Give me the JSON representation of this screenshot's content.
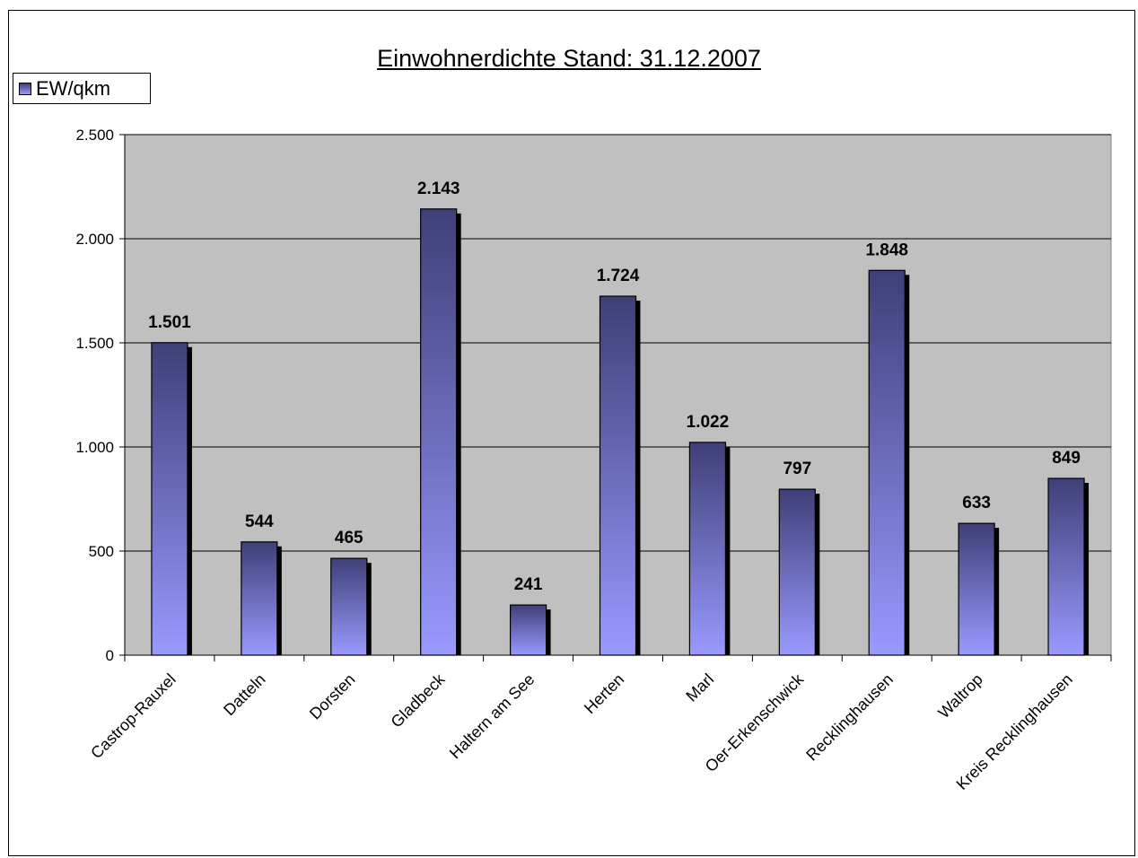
{
  "chart_data": {
    "type": "bar",
    "title": "Einwohnerdichte Stand: 31.12.2007",
    "categories": [
      "Castrop-Rauxel",
      "Datteln",
      "Dorsten",
      "Gladbeck",
      "Haltern am See",
      "Herten",
      "Marl",
      "Oer-Erkenschwick",
      "Recklinghausen",
      "Waltrop",
      "Kreis Recklinghausen"
    ],
    "series": [
      {
        "name": "EW/qkm",
        "values": [
          1501,
          544,
          465,
          2143,
          241,
          1724,
          1022,
          797,
          1848,
          633,
          849
        ]
      }
    ],
    "data_labels": [
      "1.501",
      "544",
      "465",
      "2.143",
      "241",
      "1.724",
      "1.022",
      "797",
      "1.848",
      "633",
      "849"
    ],
    "ylim": [
      0,
      2500
    ],
    "yticks": [
      0,
      500,
      1000,
      1500,
      2000,
      2500
    ],
    "ytick_labels": [
      "0",
      "500",
      "1.000",
      "1.500",
      "2.000",
      "2.500"
    ],
    "grid": true,
    "legend_position": "top-left",
    "colors": {
      "plot_bg": "#c0c0c0",
      "bar_top": "#3f3f78",
      "bar_bottom": "#9999ff",
      "shadow": "#000000",
      "gridline": "#000000"
    }
  }
}
